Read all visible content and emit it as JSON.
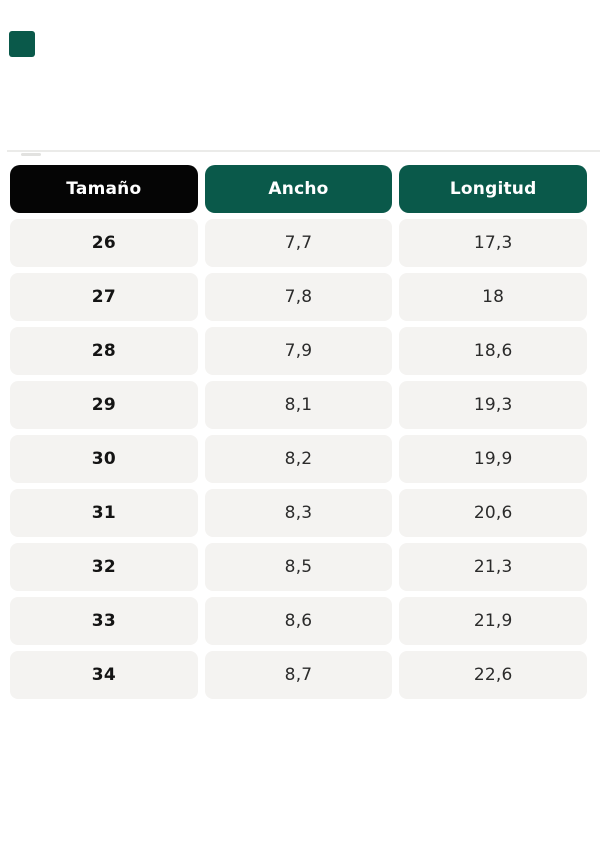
{
  "colors": {
    "header_green": "#0a594a",
    "header_black": "#050505",
    "row_bg": "#f4f3f1",
    "cell_text": "#2b2b2b",
    "size_text": "#141414",
    "header_text": "#ffffff",
    "page_bg": "#ffffff",
    "hairline": "#ebebe9"
  },
  "accent_square": {
    "color": "#0a594a"
  },
  "size_table": {
    "columns": [
      {
        "key": "tamano",
        "label": "Tamaño",
        "style": "black"
      },
      {
        "key": "ancho",
        "label": "Ancho",
        "style": "green"
      },
      {
        "key": "longitud",
        "label": "Longitud",
        "style": "green"
      }
    ],
    "rows": [
      {
        "tamano": "26",
        "ancho": "7,7",
        "longitud": "17,3"
      },
      {
        "tamano": "27",
        "ancho": "7,8",
        "longitud": "18"
      },
      {
        "tamano": "28",
        "ancho": "7,9",
        "longitud": "18,6"
      },
      {
        "tamano": "29",
        "ancho": "8,1",
        "longitud": "19,3"
      },
      {
        "tamano": "30",
        "ancho": "8,2",
        "longitud": "19,9"
      },
      {
        "tamano": "31",
        "ancho": "8,3",
        "longitud": "20,6"
      },
      {
        "tamano": "32",
        "ancho": "8,5",
        "longitud": "21,3"
      },
      {
        "tamano": "33",
        "ancho": "8,6",
        "longitud": "21,9"
      },
      {
        "tamano": "34",
        "ancho": "8,7",
        "longitud": "22,6"
      }
    ]
  }
}
